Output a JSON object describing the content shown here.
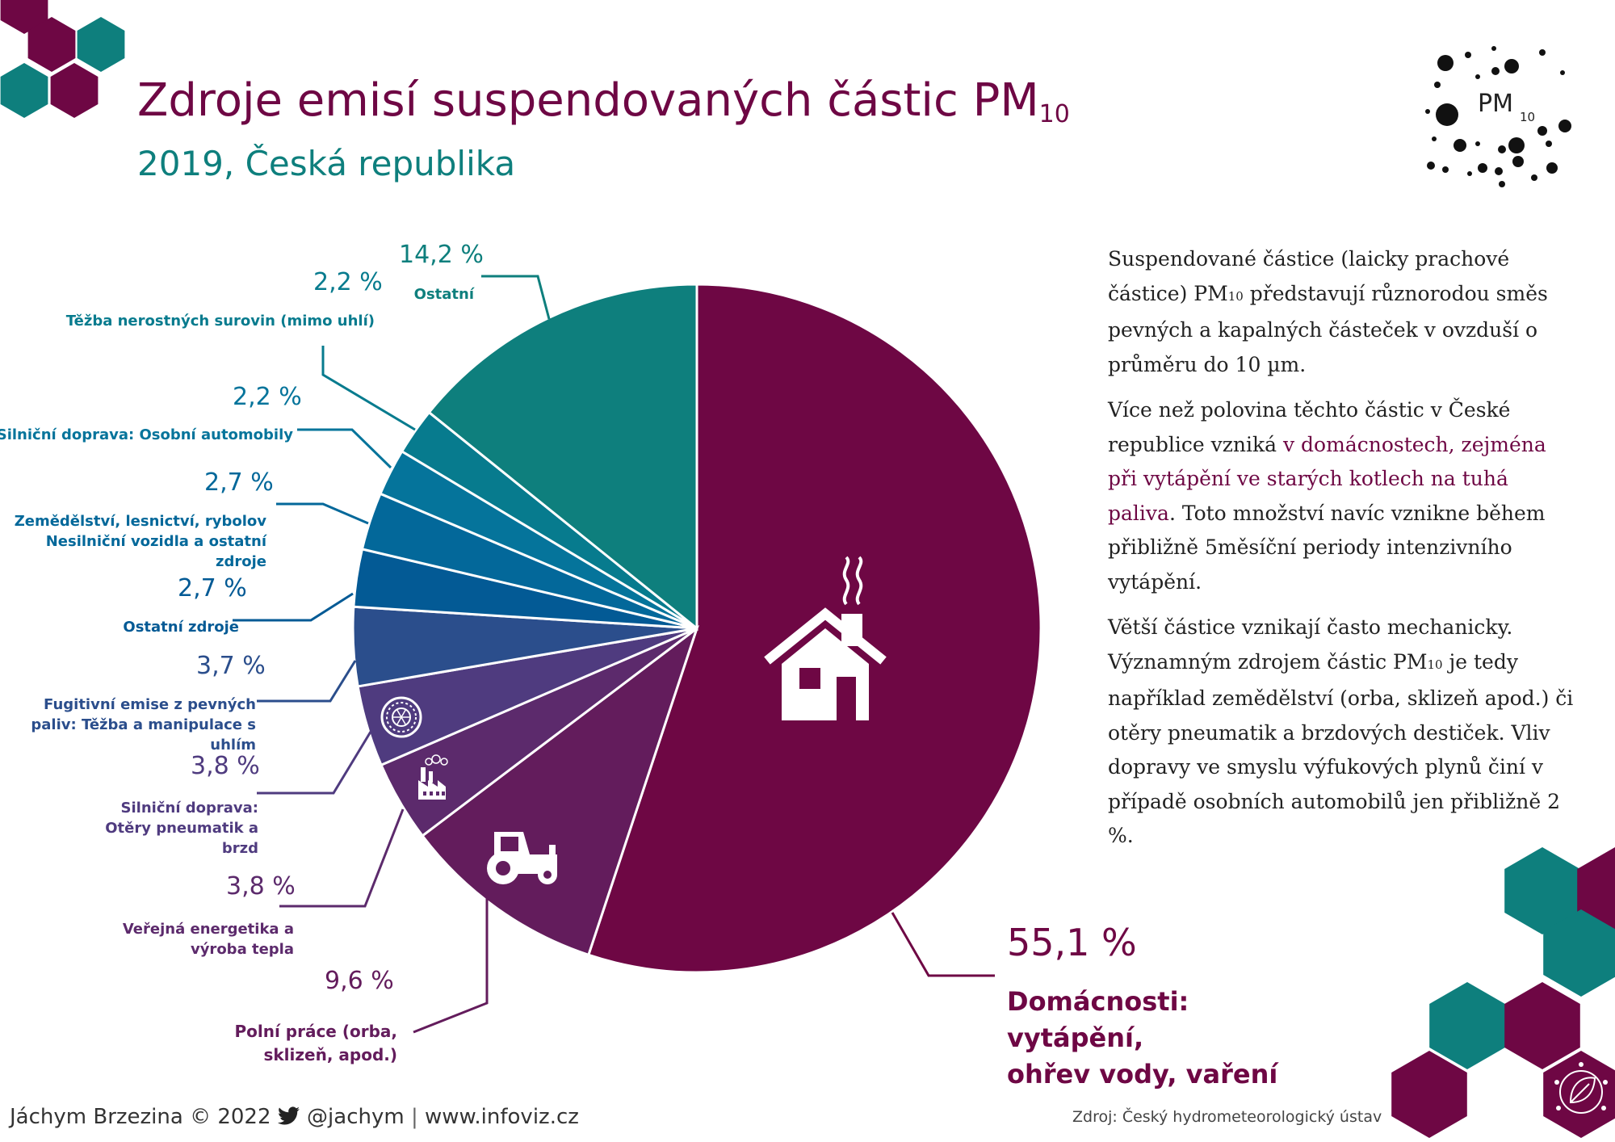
{
  "header": {
    "title": "Zdroje emisí suspendovaných částic PM",
    "title_sub": "10",
    "subtitle": "2019, Česká republika"
  },
  "logo": {
    "text": "PM",
    "sub": "10"
  },
  "description": {
    "p1_a": "Suspendované částice (laicky prachové částice) PM",
    "p1_sub": "10",
    "p1_b": " představují různorodou směs pevných a kapalných částeček v ovzduší o průměru do 10 µm.",
    "p2_a": "Více než polovina těchto částic v České republice vzniká ",
    "p2_hl": "v domácnostech, zejména při vytápění ve starých kotlech na tuhá paliva",
    "p2_b": ". Toto množství navíc vznikne během přibližně 5měsíční periody intenzivního vytápění.",
    "p3_a": "Větší částice vznikají často mechanicky. Významným zdrojem částic PM",
    "p3_sub": "10",
    "p3_b": " je tedy například zemědělství (orba, sklizeň apod.) či otěry pneumatik a brzdových destiček. Vliv dopravy ve smyslu výfukových plynů činí v případě osobních automobilů jen přibližně 2 %."
  },
  "footer": {
    "author": "Jáchym Brzezina © 2022",
    "twitter": "@jachym",
    "separator": "|",
    "website": "www.infoviz.cz",
    "source": "Zdroj: Český hydrometeorologický ústav"
  },
  "chart_data": {
    "type": "pie",
    "start": "top",
    "direction": "clockwise",
    "slices": [
      {
        "label": "Domácnosti: vytápění, ohřev vody, vaření",
        "pct_text": "55,1 %",
        "value": 55.1,
        "color": "#6e0744",
        "icon": "house-icon"
      },
      {
        "label": "Polní práce (orba, sklizeň, apod.)",
        "pct_text": "9,6 %",
        "value": 9.6,
        "color": "#631c5c",
        "icon": "tractor-icon"
      },
      {
        "label": "Veřejná energetika a výroba tepla",
        "pct_text": "3,8 %",
        "value": 3.8,
        "color": "#5c2a6c",
        "icon": "factory-icon"
      },
      {
        "label": "Silniční doprava: Otěry pneumatik a brzd",
        "pct_text": "3,8 %",
        "value": 3.8,
        "color": "#4f3b7f",
        "icon": "tire-icon"
      },
      {
        "label": "Fugitivní emise z pevných paliv: Těžba a manipulace s uhlím",
        "pct_text": "3,7 %",
        "value": 3.7,
        "color": "#2b4e8c"
      },
      {
        "label": "Ostatní zdroje",
        "pct_text": "2,7 %",
        "value": 2.7,
        "color": "#035a95"
      },
      {
        "label": "Zemědělství, lesnictví, rybolov Nesilniční vozidla a ostatní zdroje",
        "pct_text": "2,7 %",
        "value": 2.7,
        "color": "#03689a"
      },
      {
        "label": "Silniční doprava: Osobní automobily",
        "pct_text": "2,2 %",
        "value": 2.2,
        "color": "#05749b"
      },
      {
        "label": "Těžba nerostných surovin (mimo uhlí)",
        "pct_text": "2,2 %",
        "value": 2.2,
        "color": "#077b8e"
      },
      {
        "label": "Ostatní",
        "pct_text": "14,2 %",
        "value": 14.2,
        "color": "#0e7f7d"
      }
    ]
  }
}
